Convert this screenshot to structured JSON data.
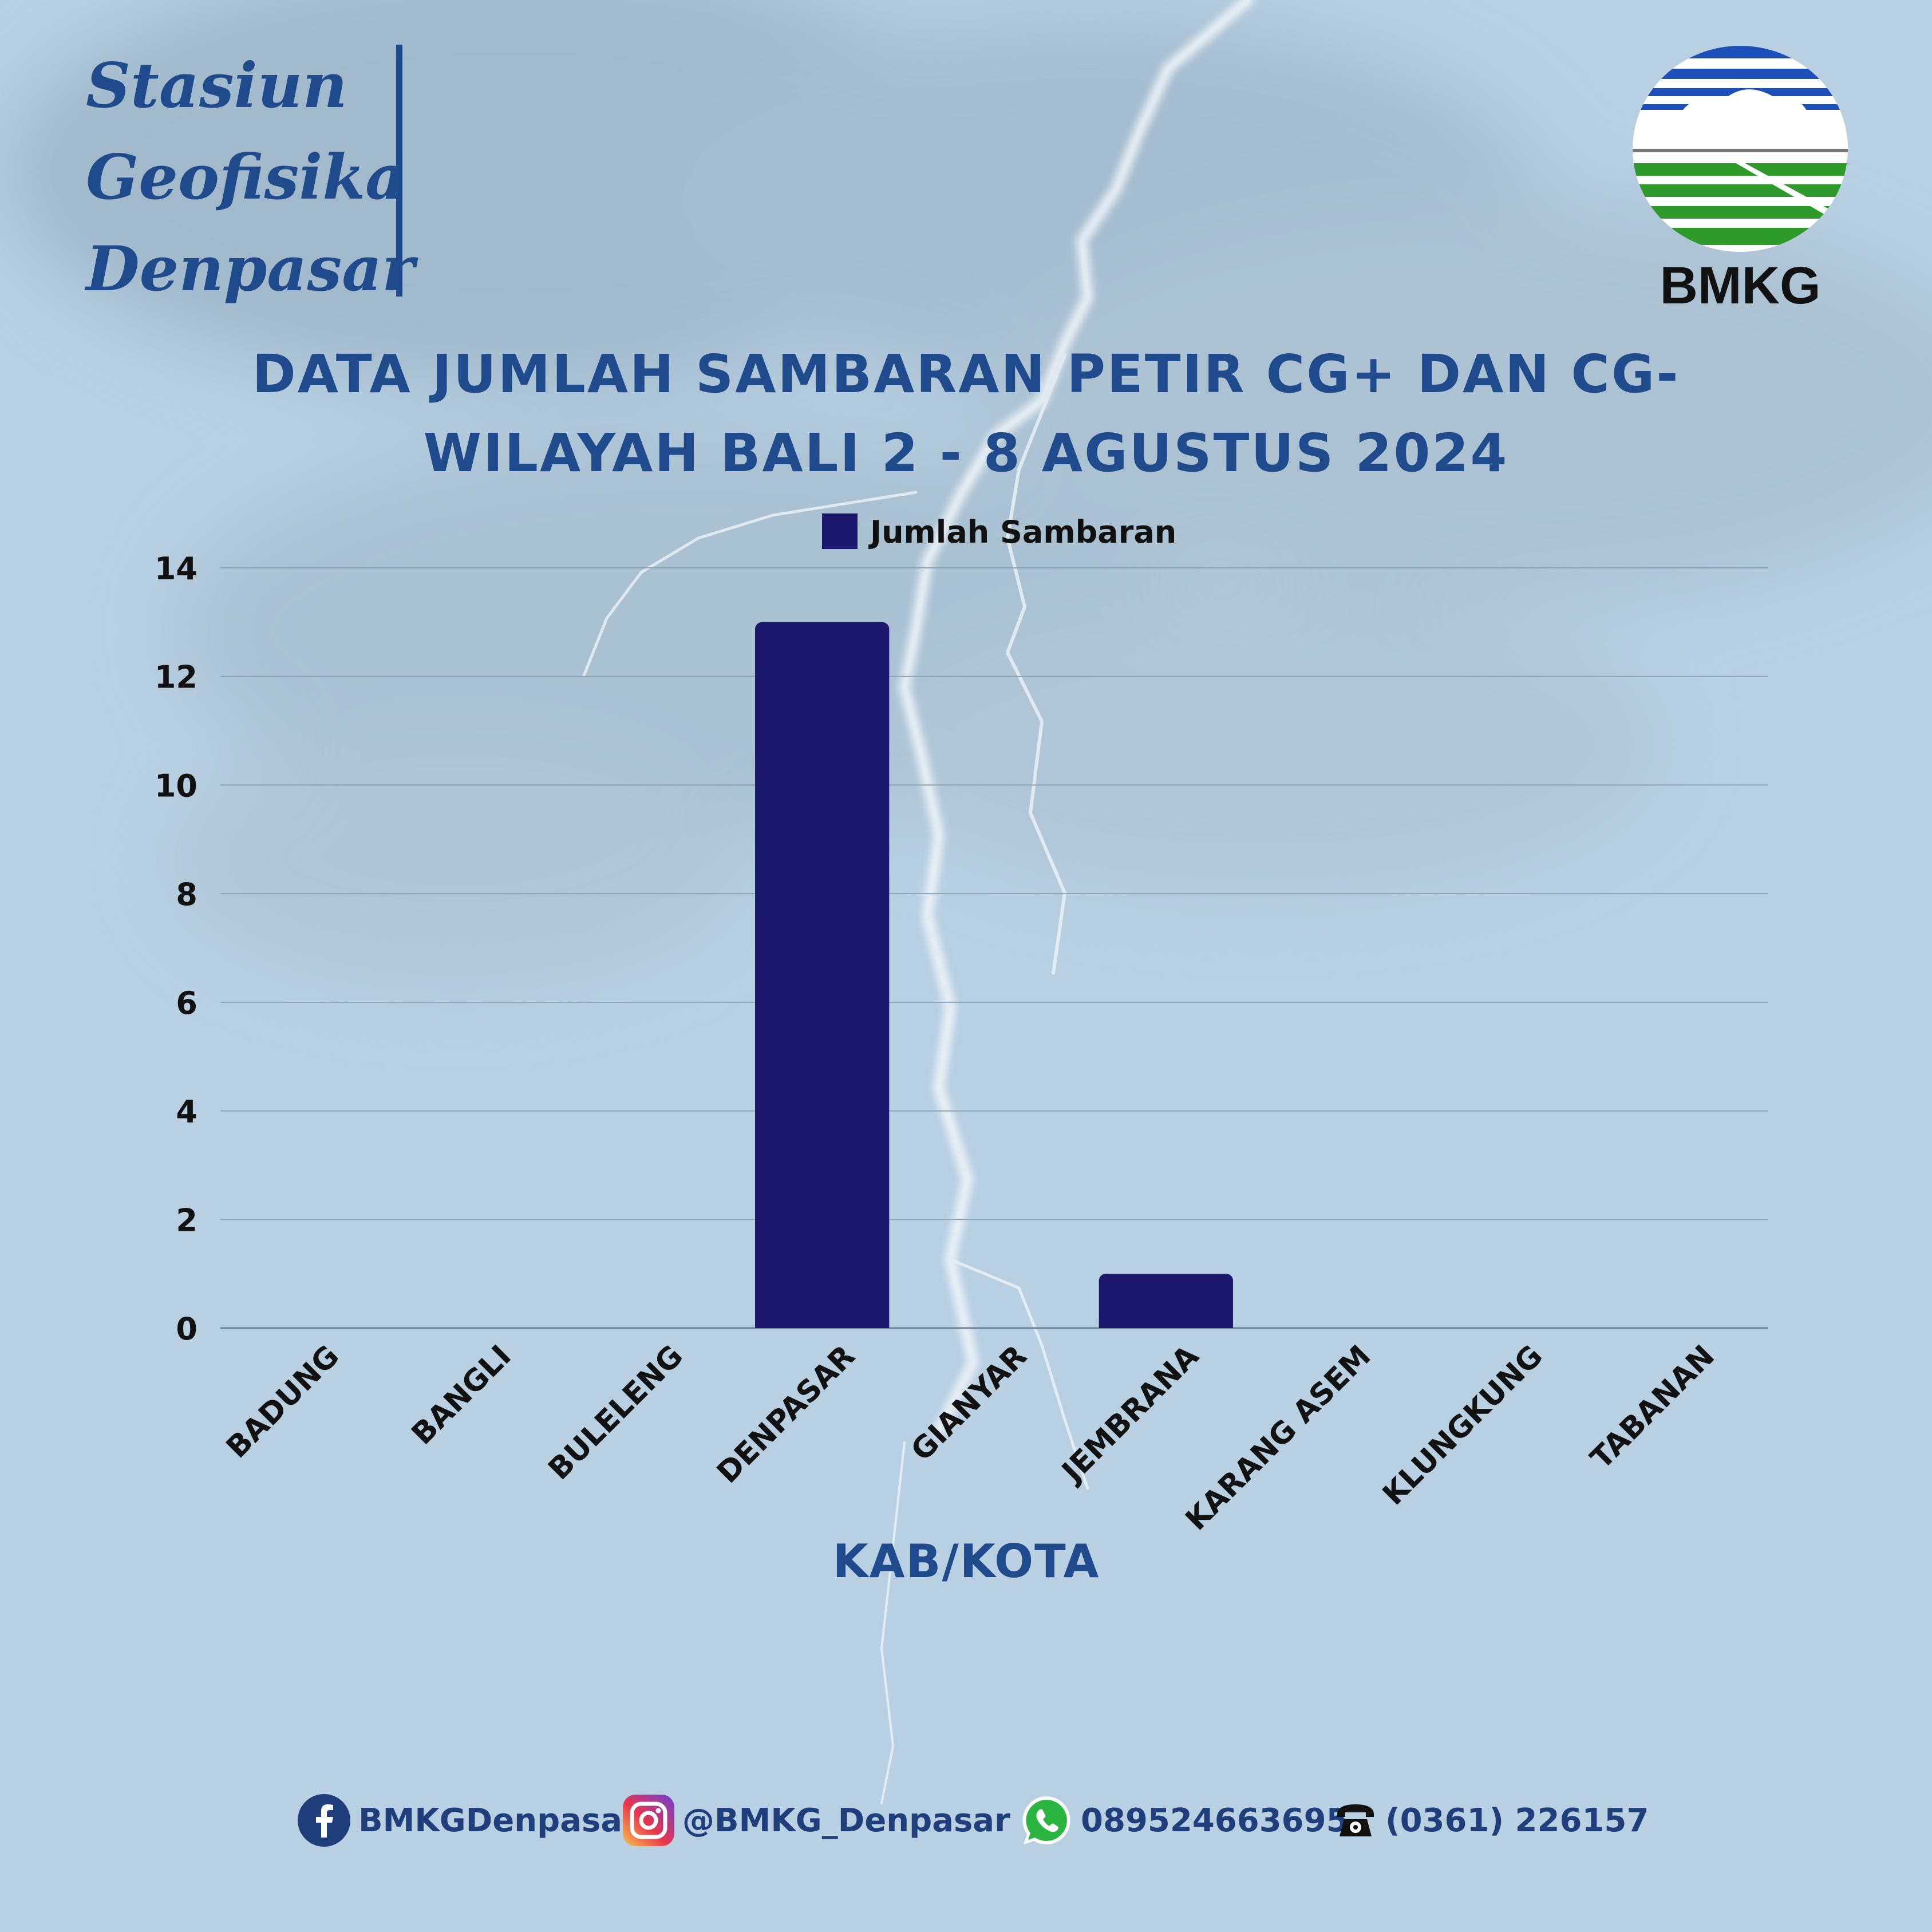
{
  "header": {
    "station_lines": [
      "Stasiun",
      "Geofisika",
      "Denpasar"
    ],
    "logo_text": "BMKG"
  },
  "title": {
    "line1": "DATA JUMLAH SAMBARAN PETIR CG+ DAN CG-",
    "line2": "WILAYAH BALI  2 - 8 AGUSTUS 2024"
  },
  "chart_data": {
    "type": "bar",
    "categories": [
      "BADUNG",
      "BANGLI",
      "BULELENG",
      "DENPASAR",
      "GIANYAR",
      "JEMBRANA",
      "KARANG ASEM",
      "KLUNGKUNG",
      "TABANAN"
    ],
    "series": [
      {
        "name": "Jumlah Sambaran",
        "values": [
          0,
          0,
          0,
          13,
          0,
          1,
          0,
          0,
          0
        ]
      }
    ],
    "xlabel": "KAB/KOTA",
    "ylabel": "",
    "ylim": [
      0,
      14
    ],
    "yticks": [
      0,
      2,
      4,
      6,
      8,
      10,
      12,
      14
    ],
    "grid": true,
    "legend": "top-center",
    "bar_color": "#1b186e"
  },
  "footer": {
    "facebook": "BMKGDenpasar",
    "instagram": "@BMKG_Denpasar",
    "whatsapp": "089524663695",
    "phone": "(0361) 226157"
  },
  "colors": {
    "primary": "#1f4b8c",
    "bar": "#1b186e",
    "background": "#b9d0e2"
  }
}
